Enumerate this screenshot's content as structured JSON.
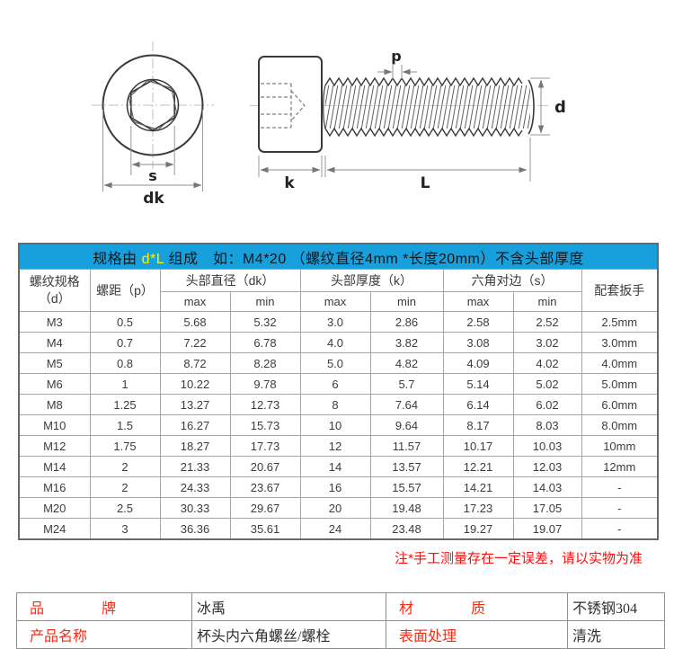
{
  "drawing": {
    "labels": {
      "socket_width": "s",
      "head_diameter": "dk",
      "pitch": "p",
      "thread_diameter": "d",
      "head_height": "k",
      "length": "L"
    }
  },
  "spec_table": {
    "title": {
      "prefix": "规格由 ",
      "highlight": "d*L",
      "suffix": " 组成　如：M4*20 （螺纹直径4mm *长度20mm）不含头部厚度"
    },
    "header": {
      "thread_spec_line1": "螺纹规格",
      "thread_spec_line2": "（d）",
      "pitch": "螺距（p）",
      "head_diameter": "头部直径（dk）",
      "head_thickness": "头部厚度（k）",
      "hex_across_flats": "六角对边（s）",
      "wrench": "配套扳手",
      "max": "max",
      "min": "min"
    },
    "rows": [
      [
        "M3",
        "0.5",
        "5.68",
        "5.32",
        "3.0",
        "2.86",
        "2.58",
        "2.52",
        "2.5mm"
      ],
      [
        "M4",
        "0.7",
        "7.22",
        "6.78",
        "4.0",
        "3.82",
        "3.08",
        "3.02",
        "3.0mm"
      ],
      [
        "M5",
        "0.8",
        "8.72",
        "8.28",
        "5.0",
        "4.82",
        "4.09",
        "4.02",
        "4.0mm"
      ],
      [
        "M6",
        "1",
        "10.22",
        "9.78",
        "6",
        "5.7",
        "5.14",
        "5.02",
        "5.0mm"
      ],
      [
        "M8",
        "1.25",
        "13.27",
        "12.73",
        "8",
        "7.64",
        "6.14",
        "6.02",
        "6.0mm"
      ],
      [
        "M10",
        "1.5",
        "16.27",
        "15.73",
        "10",
        "9.64",
        "8.17",
        "8.03",
        "8.0mm"
      ],
      [
        "M12",
        "1.75",
        "18.27",
        "17.73",
        "12",
        "11.57",
        "10.17",
        "10.03",
        "10mm"
      ],
      [
        "M14",
        "2",
        "21.33",
        "20.67",
        "14",
        "13.57",
        "12.21",
        "12.03",
        "12mm"
      ],
      [
        "M16",
        "2",
        "24.33",
        "23.67",
        "16",
        "15.57",
        "14.21",
        "14.03",
        "-"
      ],
      [
        "M20",
        "2.5",
        "30.33",
        "29.67",
        "20",
        "19.48",
        "17.23",
        "17.05",
        "-"
      ],
      [
        "M24",
        "3",
        "36.36",
        "35.61",
        "24",
        "23.48",
        "19.27",
        "19.07",
        "-"
      ]
    ]
  },
  "note": "注*手工测量存在一定误差，请以实物为准",
  "info_table": {
    "row1": {
      "label1": "品　　　　牌",
      "value1": "冰禹",
      "label2": "材　　　　质",
      "value2": "不锈钢304"
    },
    "row2": {
      "label1": "产品名称",
      "value1": "杯头内六角螺丝/螺栓",
      "label2": "表面处理",
      "value2": "清洗"
    }
  },
  "colors": {
    "header_blue": "#18a0dd",
    "highlight_yellow": "#f6f600",
    "note_red": "#fe0d0d",
    "label_red": "#f92a12"
  }
}
